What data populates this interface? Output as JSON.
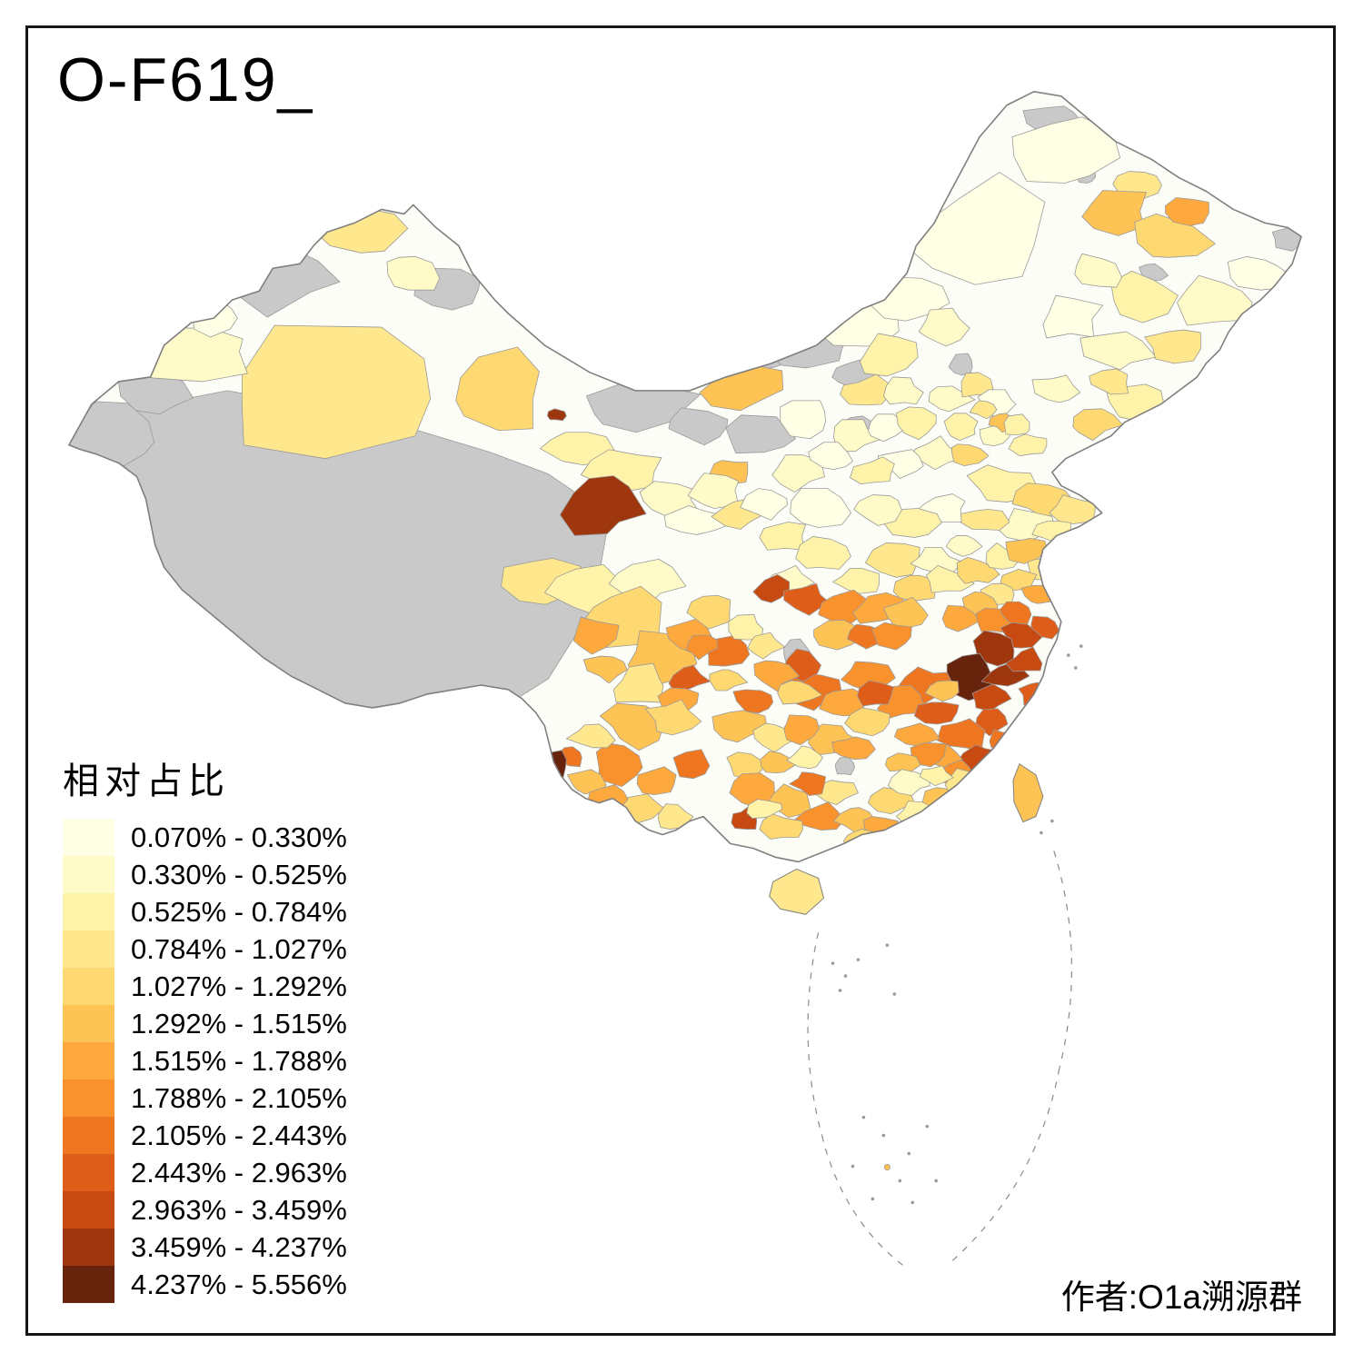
{
  "title": "O-F619_",
  "author": "作者:O1a溯源群",
  "legend": {
    "title": "相对占比",
    "items": [
      {
        "label": "0.070% - 0.330%",
        "color": "#FFFFE5"
      },
      {
        "label": "0.330% - 0.525%",
        "color": "#FFFBC8"
      },
      {
        "label": "0.525% - 0.784%",
        "color": "#FEF3A9"
      },
      {
        "label": "0.784% - 1.027%",
        "color": "#FEE78D"
      },
      {
        "label": "1.027% - 1.292%",
        "color": "#FED871"
      },
      {
        "label": "1.292% - 1.515%",
        "color": "#FEC355"
      },
      {
        "label": "1.515% - 1.788%",
        "color": "#FEA93E"
      },
      {
        "label": "1.788% - 2.105%",
        "color": "#F9912D"
      },
      {
        "label": "2.105% - 2.443%",
        "color": "#EE7621"
      },
      {
        "label": "2.443% - 2.963%",
        "color": "#DE5D18"
      },
      {
        "label": "2.963% - 3.459%",
        "color": "#C64A12"
      },
      {
        "label": "3.459% - 4.237%",
        "color": "#9E370E"
      },
      {
        "label": "4.237% - 5.556%",
        "color": "#67230B"
      }
    ]
  },
  "map": {
    "no_data_color": "#C9C9C9",
    "land_color": "#FDFDF7",
    "border_color": "#7F7F7F",
    "region_border_color": "#9A9A9A",
    "palette": [
      "#FFFFE5",
      "#FFFBC8",
      "#FEF3A9",
      "#FEE78D",
      "#FED871",
      "#FEC355",
      "#FEA93E",
      "#F9912D",
      "#EE7621",
      "#DE5D18",
      "#C64A12",
      "#9E370E",
      "#67230B"
    ]
  },
  "chart_data": {
    "type": "choropleth",
    "title": "O-F619_",
    "measure": "相对占比",
    "region_unit": "China prefecture-level divisions",
    "class_breaks_percent": [
      0.07,
      0.33,
      0.525,
      0.784,
      1.027,
      1.292,
      1.515,
      1.788,
      2.105,
      2.443,
      2.963,
      3.459,
      4.237,
      5.556
    ],
    "palette": [
      "#FFFFE5",
      "#FFFBC8",
      "#FEF3A9",
      "#FEE78D",
      "#FED871",
      "#FEC355",
      "#FEA93E",
      "#F9912D",
      "#EE7621",
      "#DE5D18",
      "#C64A12",
      "#9E370E",
      "#67230B"
    ],
    "no_data_color": "#C9C9C9",
    "legend_position": "bottom-left",
    "credit": "作者:O1a溯源群"
  }
}
